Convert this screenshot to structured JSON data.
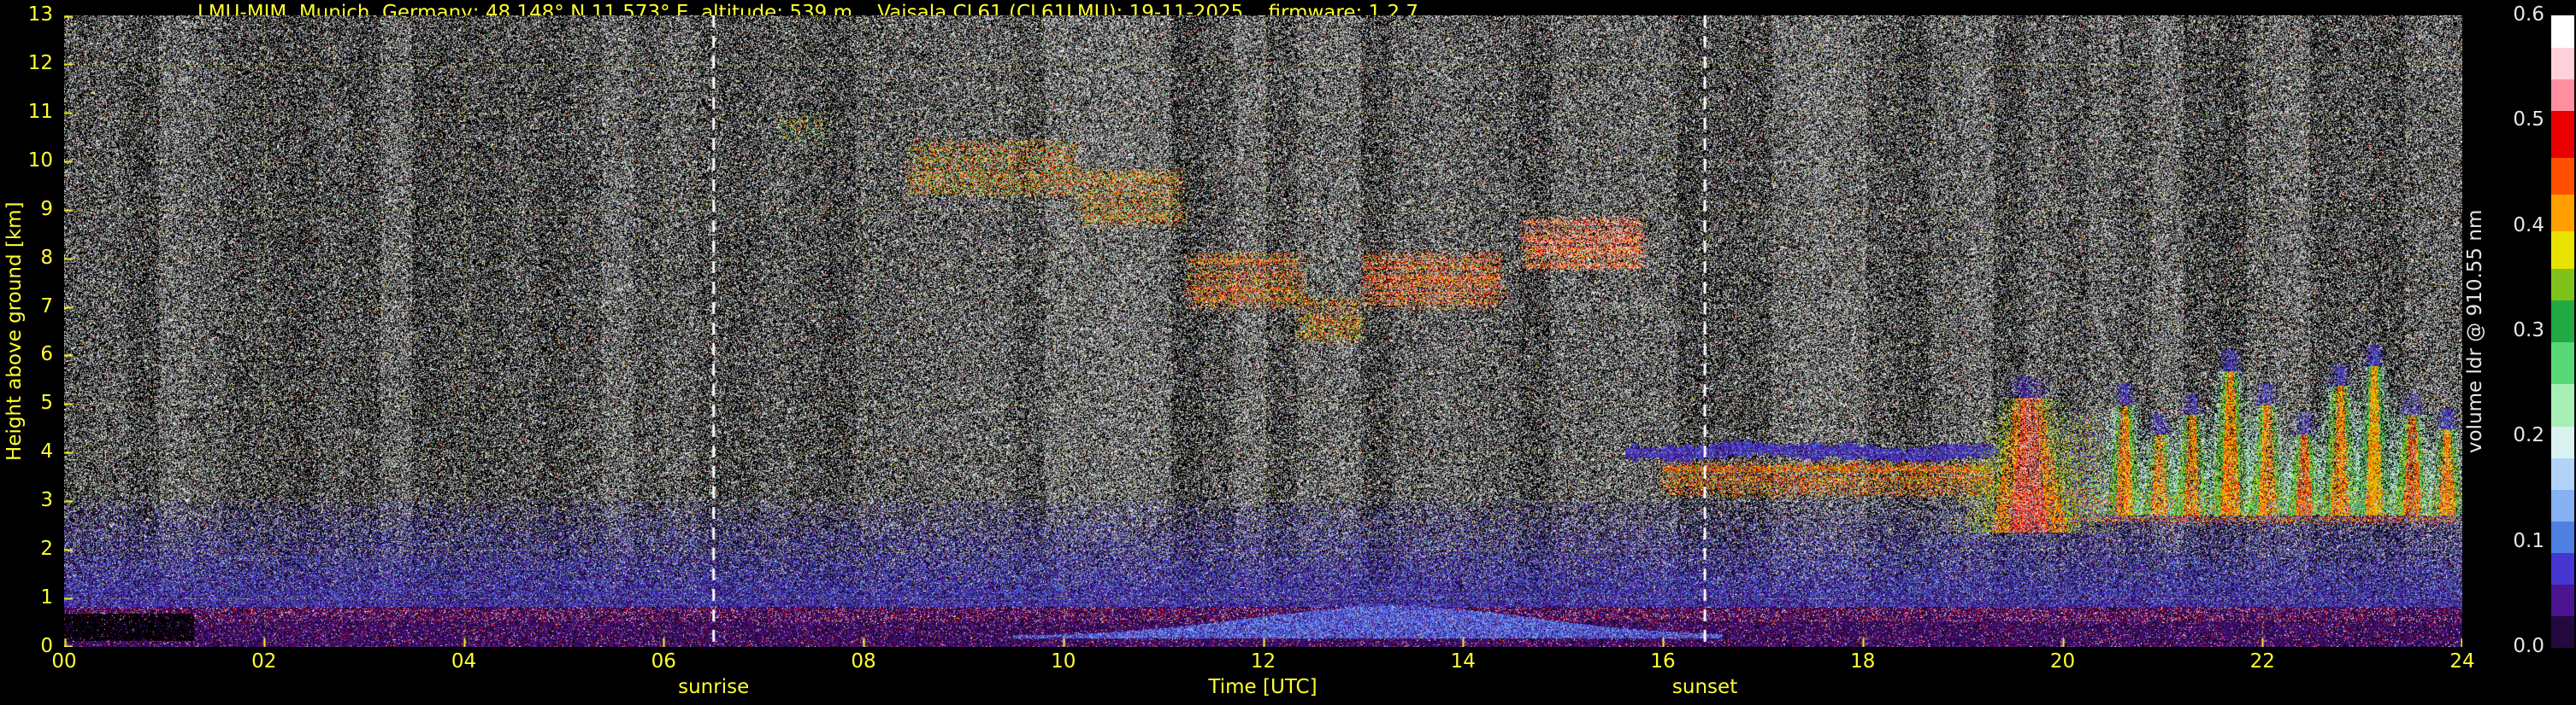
{
  "chart_data": {
    "type": "heatmap",
    "title": "LMU-MIM, Munich, Germany; 48.148° N 11.573° E, altitude: 539 m    Vaisala CL61 (CL61LMU): 19-11-2025    firmware: 1.2.7",
    "xlabel": "Time [UTC]",
    "ylabel": "Height above ground [km]",
    "xlim": [
      0,
      24
    ],
    "ylim": [
      0,
      13
    ],
    "x_ticks": [
      "00",
      "02",
      "04",
      "06",
      "08",
      "10",
      "12",
      "14",
      "16",
      "18",
      "20",
      "22",
      "24"
    ],
    "y_ticks": [
      0,
      1,
      2,
      3,
      4,
      5,
      6,
      7,
      8,
      9,
      10,
      11,
      12,
      13
    ],
    "grid": true,
    "axis_color": "#ffff33",
    "colorbar_text_color": "#e6e6e6",
    "annotation_line_color": "#ffffff",
    "annotations": [
      {
        "label": "sunrise",
        "x": 6.5,
        "style": "white-dashed-vline"
      },
      {
        "label": "sunset",
        "x": 16.42,
        "style": "white-dashed-vline"
      }
    ],
    "colorbar": {
      "label": "volume ldr @ 910.55 nm",
      "ticks": [
        0.0,
        0.1,
        0.2,
        0.3,
        0.4,
        0.5,
        0.6
      ],
      "vmin": 0.0,
      "vmax": 0.6
    },
    "colormap_segments": [
      [
        0.03,
        "#23093f"
      ],
      [
        0.06,
        "#4b1490"
      ],
      [
        0.09,
        "#4436cf"
      ],
      [
        0.12,
        "#4f7fe0"
      ],
      [
        0.15,
        "#86b1f2"
      ],
      [
        0.18,
        "#b2d3f7"
      ],
      [
        0.21,
        "#d9f1ef"
      ],
      [
        0.25,
        "#a8efb6"
      ],
      [
        0.29,
        "#57d878"
      ],
      [
        0.33,
        "#21aa44"
      ],
      [
        0.36,
        "#7fc21c"
      ],
      [
        0.395,
        "#e8e300"
      ],
      [
        0.43,
        "#ffa000"
      ],
      [
        0.465,
        "#ff5000"
      ],
      [
        0.51,
        "#e80000"
      ],
      [
        0.54,
        "#ff8fa0"
      ],
      [
        0.57,
        "#ffd0da"
      ],
      [
        0.601,
        "#ffffff"
      ]
    ],
    "noise": {
      "white_fraction": 0.5,
      "color_fraction": 0.035
    },
    "features": [
      {
        "type": "prob_band",
        "name": "boundary-layer-blue",
        "t": [
          0,
          24
        ],
        "h": [
          0.82,
          3.05
        ],
        "v": [
          0.005,
          0.115
        ],
        "p_bottom": 0.93,
        "p_top": 0.1
      },
      {
        "type": "solid_band",
        "name": "surface-aerosol-purple",
        "t": [
          0,
          24
        ],
        "h": [
          0,
          0.82
        ],
        "v": [
          0.008,
          0.055
        ],
        "pink_p": 0.1,
        "pink_v": [
          0.46,
          0.58
        ],
        "black_p": 0.1
      },
      {
        "type": "black_patch",
        "name": "low-signal-gap",
        "t": [
          0,
          1.3
        ],
        "h": [
          0.12,
          0.68
        ],
        "p": 0.8
      },
      {
        "type": "bump",
        "name": "midday-mixed-layer",
        "t": [
          9.5,
          16.6
        ],
        "center": 13.3,
        "sigma": 2.0,
        "base": 0.22,
        "amp": 0.62,
        "v": [
          0.05,
          0.145
        ],
        "p": 0.85
      },
      {
        "type": "cloud",
        "name": "cirrus-0",
        "t": [
          7.1,
          7.7
        ],
        "h": [
          10.3,
          11.0
        ],
        "v": [
          0.15,
          0.45
        ],
        "p": 0.25
      },
      {
        "type": "cloud",
        "name": "cirrus-1",
        "t": [
          8.4,
          10.2
        ],
        "h": [
          9.2,
          10.5
        ],
        "v": [
          0.18,
          0.52
        ],
        "p": 0.5
      },
      {
        "type": "cloud",
        "name": "cirrus-2",
        "t": [
          10.1,
          11.25
        ],
        "h": [
          8.6,
          9.9
        ],
        "v": [
          0.22,
          0.52
        ],
        "p": 0.5
      },
      {
        "type": "cloud",
        "name": "cirrus-3",
        "t": [
          11.2,
          12.45
        ],
        "h": [
          6.9,
          8.2
        ],
        "v": [
          0.28,
          0.54
        ],
        "p": 0.55
      },
      {
        "type": "cloud",
        "name": "cirrus-4",
        "t": [
          12.3,
          13.05
        ],
        "h": [
          6.2,
          7.3
        ],
        "v": [
          0.26,
          0.5
        ],
        "p": 0.45
      },
      {
        "type": "cloud",
        "name": "cirrus-5",
        "t": [
          12.95,
          14.45
        ],
        "h": [
          6.9,
          8.2
        ],
        "v": [
          0.32,
          0.55
        ],
        "p": 0.6
      },
      {
        "type": "cloud",
        "name": "cirrus-6",
        "t": [
          14.55,
          15.85
        ],
        "h": [
          7.7,
          8.9
        ],
        "v": [
          0.34,
          0.58
        ],
        "p": 0.65
      },
      {
        "type": "liquid_line",
        "name": "stratus-cloud-base",
        "t": [
          15.62,
          19.35
        ],
        "hc": 4.02,
        "hw": 0.15,
        "v": [
          0.02,
          0.11
        ],
        "p": 0.95
      },
      {
        "type": "cloud",
        "name": "subcloud-drizzle-orange",
        "t": [
          15.95,
          19.35
        ],
        "h": [
          3.05,
          3.87
        ],
        "v": [
          0.3,
          0.5
        ],
        "p": 0.78,
        "mix_blue": 0.12
      },
      {
        "type": "cloud",
        "name": "low-band-evening",
        "t": [
          19.4,
          24
        ],
        "h": [
          2.45,
          3.3
        ],
        "v": [
          0.3,
          0.52
        ],
        "p": 0.5,
        "mix_blue": 0.3
      },
      {
        "type": "plume",
        "name": "virga-red",
        "tc": 19.66,
        "w": 0.34,
        "top": 5.45,
        "bottom": 2.35,
        "vc": [
          0.42,
          0.56
        ],
        "vm": [
          0.36,
          0.48
        ],
        "ve": [
          0.3,
          0.42
        ],
        "cap": [
          0.02,
          0.1
        ]
      },
      {
        "type": "cloud",
        "name": "mixed-column",
        "t": [
          19.98,
          20.48
        ],
        "h": [
          2.6,
          4.9
        ],
        "v": [
          0.2,
          0.45
        ],
        "p": 0.65,
        "mix_blue": 0.4
      },
      {
        "type": "plume",
        "name": "fallstreak-1",
        "tc": 20.62,
        "w": 0.17,
        "top": 5.3,
        "bottom": 2.7,
        "vc": [
          0.36,
          0.48
        ],
        "vm": [
          0.28,
          0.38
        ],
        "ve": [
          0.16,
          0.28
        ],
        "cap": [
          0.03,
          0.11
        ]
      },
      {
        "type": "plume",
        "name": "fallstreak-2",
        "tc": 20.97,
        "w": 0.16,
        "top": 4.7,
        "bottom": 2.7,
        "vc": [
          0.36,
          0.48
        ],
        "vm": [
          0.28,
          0.38
        ],
        "ve": [
          0.16,
          0.28
        ],
        "cap": [
          0.03,
          0.11
        ]
      },
      {
        "type": "plume",
        "name": "fallstreak-3",
        "tc": 21.3,
        "w": 0.17,
        "top": 5.1,
        "bottom": 2.7,
        "vc": [
          0.36,
          0.48
        ],
        "vm": [
          0.28,
          0.38
        ],
        "ve": [
          0.16,
          0.28
        ],
        "cap": [
          0.03,
          0.11
        ]
      },
      {
        "type": "plume",
        "name": "fallstreak-4",
        "tc": 21.68,
        "w": 0.18,
        "top": 6.0,
        "bottom": 2.7,
        "vc": [
          0.36,
          0.48
        ],
        "vm": [
          0.28,
          0.38
        ],
        "ve": [
          0.16,
          0.28
        ],
        "cap": [
          0.03,
          0.11
        ]
      },
      {
        "type": "plume",
        "name": "fallstreak-5",
        "tc": 22.05,
        "w": 0.17,
        "top": 5.3,
        "bottom": 2.7,
        "vc": [
          0.36,
          0.48
        ],
        "vm": [
          0.28,
          0.38
        ],
        "ve": [
          0.16,
          0.28
        ],
        "cap": [
          0.03,
          0.11
        ]
      },
      {
        "type": "plume",
        "name": "fallstreak-6",
        "tc": 22.42,
        "w": 0.16,
        "top": 4.7,
        "bottom": 2.7,
        "vc": [
          0.38,
          0.5
        ],
        "vm": [
          0.28,
          0.38
        ],
        "ve": [
          0.16,
          0.28
        ],
        "cap": [
          0.03,
          0.11
        ]
      },
      {
        "type": "plume",
        "name": "fallstreak-7",
        "tc": 22.78,
        "w": 0.18,
        "top": 5.7,
        "bottom": 2.7,
        "vc": [
          0.36,
          0.48
        ],
        "vm": [
          0.28,
          0.38
        ],
        "ve": [
          0.16,
          0.28
        ],
        "cap": [
          0.03,
          0.11
        ]
      },
      {
        "type": "plume",
        "name": "fallstreak-8",
        "tc": 23.12,
        "w": 0.17,
        "top": 6.1,
        "bottom": 2.7,
        "vc": [
          0.34,
          0.46
        ],
        "vm": [
          0.26,
          0.36
        ],
        "ve": [
          0.16,
          0.28
        ],
        "cap": [
          0.03,
          0.11
        ]
      },
      {
        "type": "plume",
        "name": "fallstreak-9",
        "tc": 23.5,
        "w": 0.17,
        "top": 5.1,
        "bottom": 2.7,
        "vc": [
          0.38,
          0.5
        ],
        "vm": [
          0.28,
          0.38
        ],
        "ve": [
          0.16,
          0.28
        ],
        "cap": [
          0.03,
          0.11
        ]
      },
      {
        "type": "plume",
        "name": "fallstreak-10",
        "tc": 23.85,
        "w": 0.16,
        "top": 4.8,
        "bottom": 2.7,
        "vc": [
          0.36,
          0.48
        ],
        "vm": [
          0.28,
          0.38
        ],
        "ve": [
          0.16,
          0.28
        ],
        "cap": [
          0.03,
          0.11
        ]
      }
    ]
  }
}
